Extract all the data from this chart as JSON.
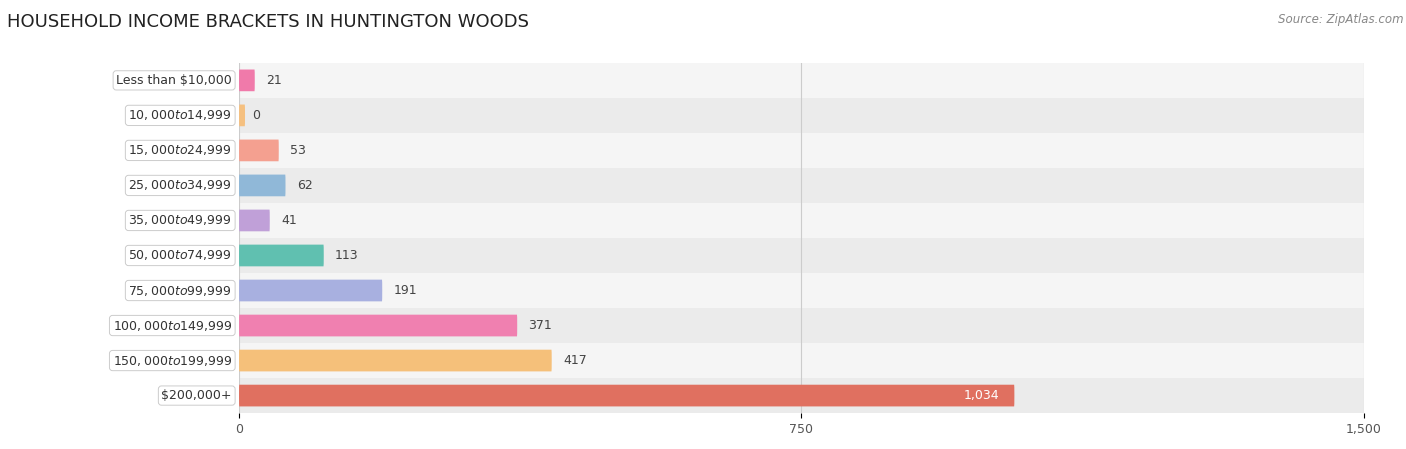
{
  "title": "HOUSEHOLD INCOME BRACKETS IN HUNTINGTON WOODS",
  "source": "Source: ZipAtlas.com",
  "categories": [
    "Less than $10,000",
    "$10,000 to $14,999",
    "$15,000 to $24,999",
    "$25,000 to $34,999",
    "$35,000 to $49,999",
    "$50,000 to $74,999",
    "$75,000 to $99,999",
    "$100,000 to $149,999",
    "$150,000 to $199,999",
    "$200,000+"
  ],
  "values": [
    21,
    0,
    53,
    62,
    41,
    113,
    191,
    371,
    417,
    1034
  ],
  "bar_colors": [
    "#f07aaa",
    "#f5c080",
    "#f4a090",
    "#90b8d8",
    "#c0a0d8",
    "#60c0b0",
    "#a8b0e0",
    "#f080b0",
    "#f5c07a",
    "#e07060"
  ],
  "xlim": [
    0,
    1500
  ],
  "xticks": [
    0,
    750,
    1500
  ],
  "bar_height": 0.62,
  "title_fontsize": 13,
  "label_fontsize": 9,
  "value_fontsize": 9,
  "tick_fontsize": 9,
  "source_fontsize": 8.5,
  "fig_bg": "#ffffff",
  "row_colors": [
    "#f5f5f5",
    "#ebebeb"
  ]
}
